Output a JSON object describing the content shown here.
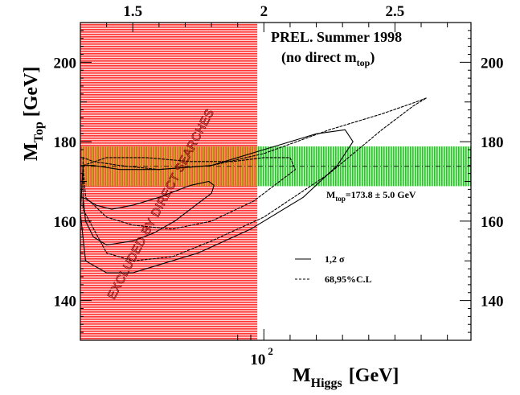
{
  "chart_data": {
    "type": "line",
    "title_line1": "PREL. Summer 1998",
    "title_line2_main": "(no direct m",
    "title_line2_sub": "top",
    "title_line2_end": ")",
    "xlabel_main": "M",
    "xlabel_sub": "Higgs",
    "xlabel_unit": "[GeV]",
    "ylabel_main": "M",
    "ylabel_sub": "Top",
    "ylabel_unit": "[GeV]",
    "xlim_log10": [
      1.3,
      2.79
    ],
    "ylim": [
      130,
      210
    ],
    "x_ticks_top": [
      {
        "value": 1.5,
        "label": "1.5"
      },
      {
        "value": 2.0,
        "label": "2"
      },
      {
        "value": 2.5,
        "label": "2.5"
      }
    ],
    "x_tick_bottom": {
      "value": 2.0,
      "label_base": "10",
      "label_exp": "2"
    },
    "y_ticks": [
      {
        "value": 140,
        "label": "140"
      },
      {
        "value": 160,
        "label": "160"
      },
      {
        "value": 180,
        "label": "180"
      },
      {
        "value": 200,
        "label": "200"
      }
    ],
    "excluded_region": {
      "x_log10": [
        1.3,
        1.975
      ],
      "label": "EXCLUDED BY DIRECT SEARCHES",
      "color": "#ff3030"
    },
    "mtop_band": {
      "center": 173.8,
      "error": 5.0,
      "label_main": "M",
      "label_sub": "top",
      "label_rest": "=173.8 ± 5.0 GeV",
      "color": "#22cc22"
    },
    "legend": [
      {
        "style": "solid",
        "label": "1,2 σ"
      },
      {
        "style": "dashed",
        "label": "68,95%C.L"
      }
    ],
    "series": [
      {
        "style": "solid",
        "level": "1 sigma",
        "points": [
          [
            1.31,
            166
          ],
          [
            1.32,
            160
          ],
          [
            1.35,
            156
          ],
          [
            1.4,
            154
          ],
          [
            1.5,
            155
          ],
          [
            1.58,
            157
          ],
          [
            1.66,
            160
          ],
          [
            1.74,
            164
          ],
          [
            1.8,
            167
          ],
          [
            1.81,
            169
          ],
          [
            1.79,
            170
          ],
          [
            1.72,
            169
          ],
          [
            1.6,
            166
          ],
          [
            1.5,
            164
          ],
          [
            1.42,
            163
          ],
          [
            1.36,
            164
          ],
          [
            1.31,
            166
          ]
        ]
      },
      {
        "style": "solid",
        "level": "2 sigma",
        "points": [
          [
            1.31,
            174
          ],
          [
            1.3,
            162
          ],
          [
            1.32,
            150
          ],
          [
            1.4,
            147
          ],
          [
            1.5,
            147
          ],
          [
            1.6,
            149
          ],
          [
            1.75,
            152
          ],
          [
            1.95,
            158
          ],
          [
            2.15,
            166
          ],
          [
            2.28,
            174
          ],
          [
            2.34,
            180
          ],
          [
            2.31,
            183
          ],
          [
            2.2,
            182
          ],
          [
            2.0,
            178
          ],
          [
            1.8,
            174
          ],
          [
            1.6,
            173
          ],
          [
            1.45,
            173
          ],
          [
            1.35,
            174
          ],
          [
            1.31,
            174
          ]
        ]
      },
      {
        "style": "dashed",
        "level": "68% C.L.",
        "points": [
          [
            1.31,
            174
          ],
          [
            1.32,
            166
          ],
          [
            1.4,
            161
          ],
          [
            1.5,
            159
          ],
          [
            1.65,
            158
          ],
          [
            1.8,
            160
          ],
          [
            1.96,
            165
          ],
          [
            2.06,
            170
          ],
          [
            2.12,
            173
          ],
          [
            2.1,
            176
          ],
          [
            2.0,
            176
          ],
          [
            1.88,
            175
          ],
          [
            1.72,
            175
          ],
          [
            1.55,
            176
          ],
          [
            1.4,
            176
          ],
          [
            1.31,
            174
          ]
        ]
      },
      {
        "style": "dashed",
        "level": "95% C.L.",
        "points": [
          [
            1.31,
            176
          ],
          [
            1.31,
            163
          ],
          [
            1.4,
            152
          ],
          [
            1.5,
            150
          ],
          [
            1.65,
            151
          ],
          [
            1.8,
            155
          ],
          [
            2.0,
            161
          ],
          [
            2.25,
            172
          ],
          [
            2.45,
            183
          ],
          [
            2.57,
            189
          ],
          [
            2.62,
            191
          ],
          [
            2.58,
            190
          ],
          [
            2.45,
            187
          ],
          [
            2.25,
            183
          ],
          [
            2.0,
            177
          ],
          [
            1.8,
            174
          ],
          [
            1.6,
            173
          ],
          [
            1.45,
            174
          ],
          [
            1.35,
            175
          ],
          [
            1.31,
            176
          ]
        ]
      }
    ]
  }
}
